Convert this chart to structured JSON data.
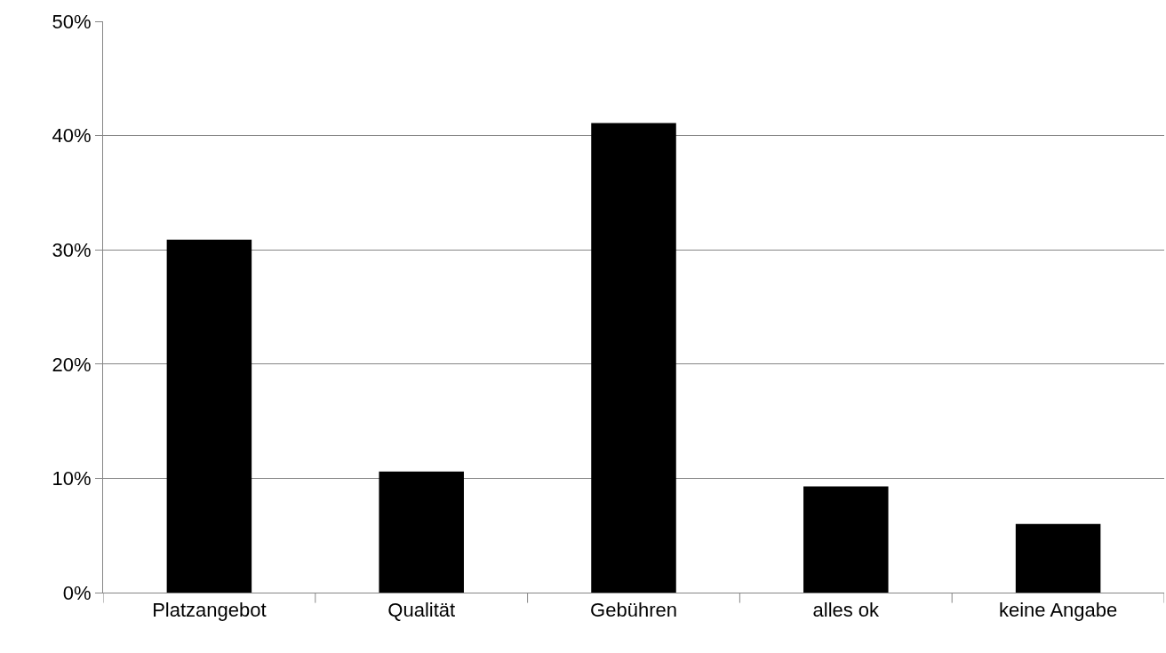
{
  "chart_data": {
    "type": "bar",
    "categories": [
      "Platzangebot",
      "Qualität",
      "Gebühren",
      "alles ok",
      "keine Angabe"
    ],
    "values": [
      30.9,
      10.6,
      41.1,
      9.3,
      6.0
    ],
    "color": "#000000",
    "ylim": [
      0,
      50
    ],
    "yticks": [
      {
        "value": 0,
        "label": "0%"
      },
      {
        "value": 10,
        "label": "10%"
      },
      {
        "value": 20,
        "label": "20%"
      },
      {
        "value": 30,
        "label": "30%"
      },
      {
        "value": 40,
        "label": "40%"
      },
      {
        "value": 50,
        "label": "50%"
      }
    ],
    "grid": "y"
  }
}
